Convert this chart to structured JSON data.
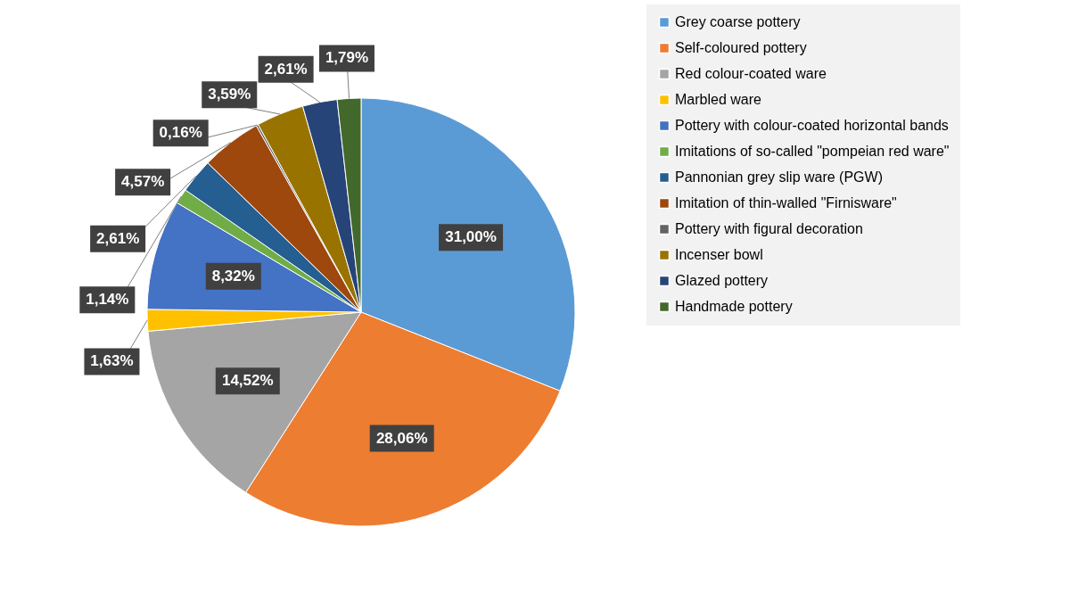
{
  "chart_data": {
    "type": "pie",
    "categories": [
      "Grey coarse pottery",
      "Self-coloured pottery",
      "Red colour-coated ware",
      "Marbled ware",
      "Pottery with colour-coated horizontal bands",
      "Imitations of so-called \"pompeian red ware\"",
      "Pannonian grey slip ware (PGW)",
      "Imitation of thin-walled \"Firnisware\"",
      "Pottery with figural decoration",
      "Incenser bowl",
      "Glazed pottery",
      "Handmade pottery"
    ],
    "values": [
      31.0,
      28.06,
      14.52,
      1.63,
      8.32,
      1.14,
      2.61,
      4.57,
      0.16,
      3.59,
      2.61,
      1.79
    ],
    "value_labels": [
      "31,00%",
      "28,06%",
      "14,52%",
      "1,63%",
      "8,32%",
      "1,14%",
      "2,61%",
      "4,57%",
      "0,16%",
      "3,59%",
      "2,61%",
      "1,79%"
    ],
    "colors": [
      "#5b9bd5",
      "#ed7d31",
      "#a5a5a5",
      "#ffc000",
      "#4472c4",
      "#70ad47",
      "#255e91",
      "#9e480e",
      "#636363",
      "#997300",
      "#264478",
      "#43682b"
    ],
    "legend": "right"
  }
}
